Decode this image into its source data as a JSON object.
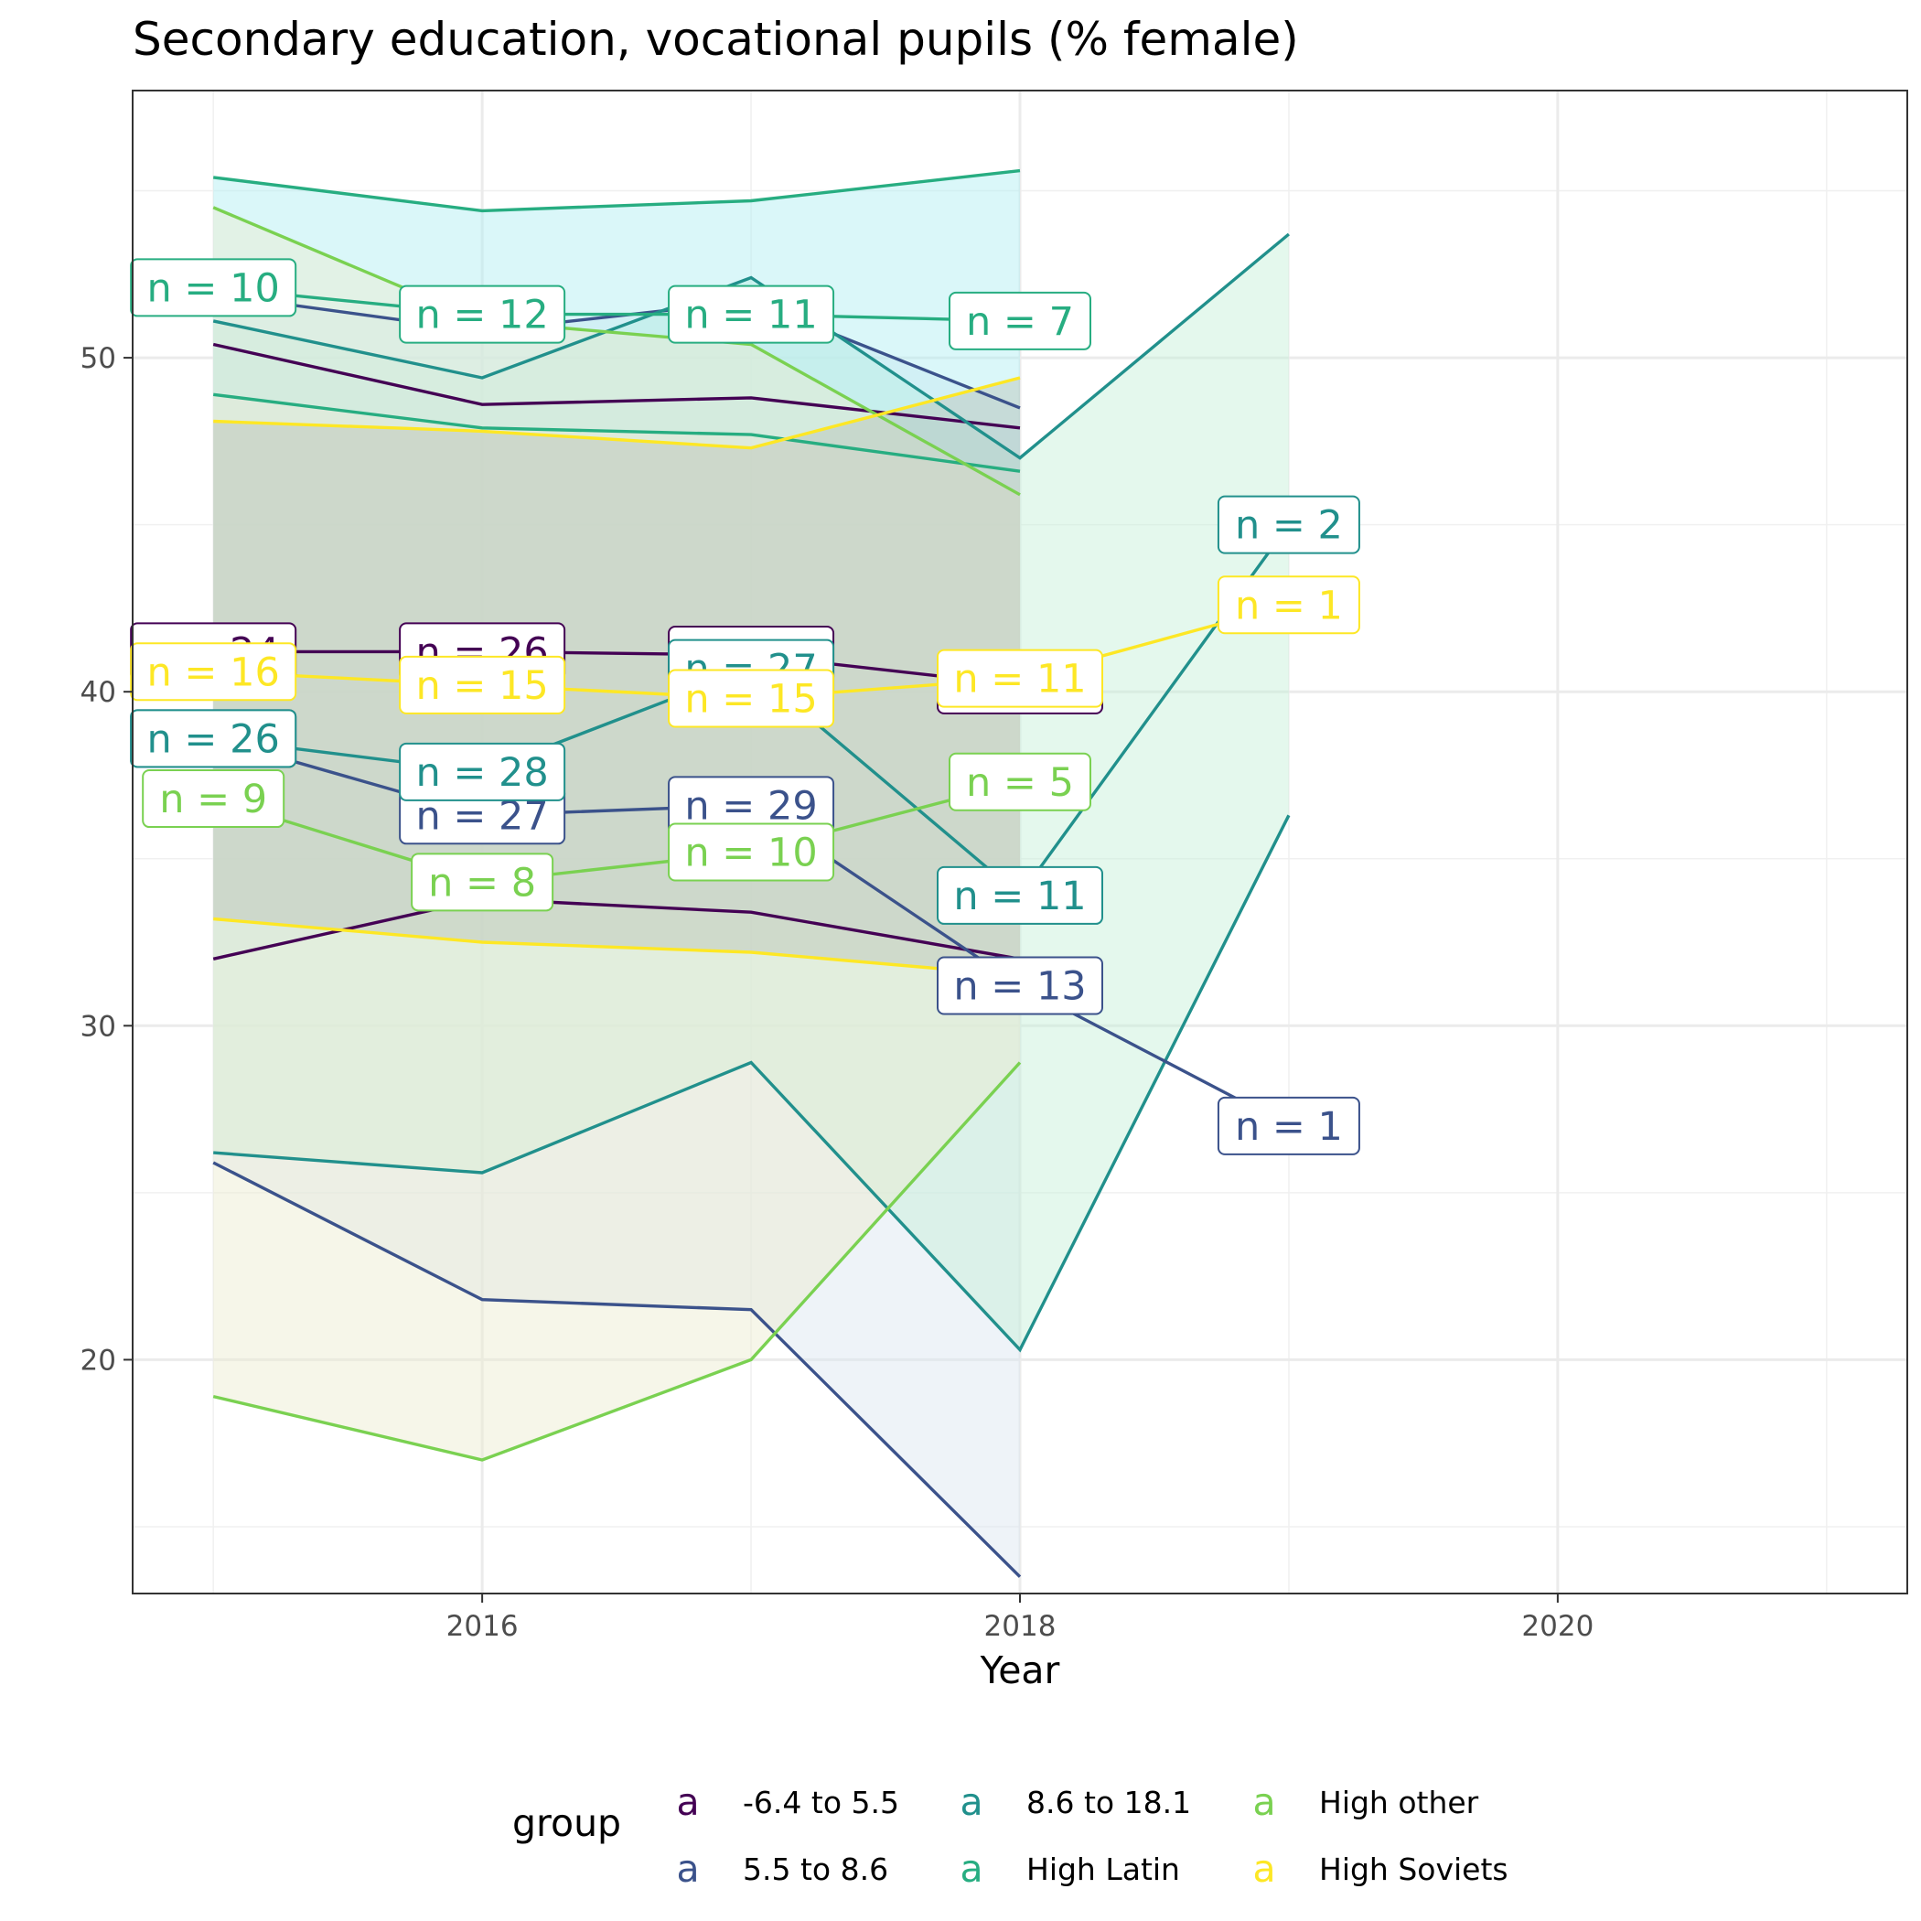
{
  "chart_data": {
    "type": "line",
    "title": "Secondary education, vocational pupils (% female)",
    "xlabel": "Year",
    "ylabel": "",
    "xlim": [
      2014.7,
      2021.3
    ],
    "ylim": [
      13.0,
      58.0
    ],
    "x_ticks": [
      2016,
      2018,
      2020
    ],
    "y_ticks": [
      20,
      30,
      40,
      50
    ],
    "grid": true,
    "legend_title": "group",
    "legend_position": "bottom",
    "legend_key_glyph": "a",
    "series": [
      {
        "name": "-6.4 to 5.5",
        "color": "#440154",
        "x": [
          2015,
          2016,
          2017,
          2018
        ],
        "mean": [
          41.2,
          41.2,
          41.1,
          40.2
        ],
        "upper": [
          50.4,
          48.6,
          48.8,
          47.9
        ],
        "lower": [
          32.0,
          33.8,
          33.4,
          32.0
        ],
        "labels": [
          "n = 24",
          "n = 26",
          "n = 26",
          "n = 12"
        ]
      },
      {
        "name": "5.5 to 8.6",
        "color": "#3B528B",
        "x": [
          2015,
          2016,
          2017,
          2018,
          2019
        ],
        "mean": [
          38.6,
          36.3,
          36.6,
          31.2,
          27.0
        ],
        "upper": [
          51.9,
          50.8,
          51.7,
          48.5,
          null
        ],
        "lower": [
          25.9,
          21.8,
          21.5,
          13.5,
          null
        ],
        "labels": [
          "n = 28",
          "n = 27",
          "n = 29",
          "n = 13",
          "n = 1"
        ]
      },
      {
        "name": "8.6 to 18.1",
        "color": "#21908C",
        "x": [
          2015,
          2016,
          2017,
          2018,
          2019
        ],
        "mean": [
          38.6,
          37.6,
          40.7,
          33.9,
          45.0
        ],
        "upper": [
          51.1,
          49.4,
          52.4,
          47.0,
          53.7
        ],
        "lower": [
          26.2,
          25.6,
          28.9,
          20.3,
          36.3
        ],
        "labels": [
          "n = 26",
          "n = 28",
          "n = 27",
          "n = 11",
          "n = 2"
        ]
      },
      {
        "name": "High Latin",
        "color": "#27AD81",
        "x": [
          2015,
          2016,
          2017,
          2018
        ],
        "mean": [
          52.1,
          51.3,
          51.3,
          51.1
        ],
        "upper": [
          55.4,
          54.4,
          54.7,
          55.6
        ],
        "lower": [
          48.9,
          47.9,
          47.7,
          46.6
        ],
        "labels": [
          "n = 10",
          "n = 12",
          "n = 11",
          "n = 7"
        ]
      },
      {
        "name": "High other",
        "color": "#7AD151",
        "x": [
          2015,
          2016,
          2017,
          2018
        ],
        "mean": [
          36.8,
          34.3,
          35.2,
          37.3
        ],
        "upper": [
          54.5,
          51.1,
          50.4,
          45.9
        ],
        "lower": [
          18.9,
          17.0,
          20.0,
          28.9
        ],
        "labels": [
          "n = 9",
          "n = 8",
          "n = 10",
          "n = 5"
        ]
      },
      {
        "name": "High Soviets",
        "color": "#FDE725",
        "x": [
          2015,
          2016,
          2017,
          2018,
          2019
        ],
        "mean": [
          40.6,
          40.2,
          39.8,
          40.4,
          42.6
        ],
        "upper": [
          48.1,
          47.8,
          47.3,
          49.4,
          null
        ],
        "lower": [
          33.2,
          32.5,
          32.2,
          31.5,
          null
        ],
        "labels": [
          "n = 16",
          "n = 15",
          "n = 15",
          "n = 11",
          "n = 1"
        ]
      }
    ],
    "ribbon_fills": [
      "#c7d7f5",
      "#d9e4f0",
      "#c4f0d6",
      "#aeeef2",
      "#ecebcf",
      "#b9c2b6"
    ]
  }
}
